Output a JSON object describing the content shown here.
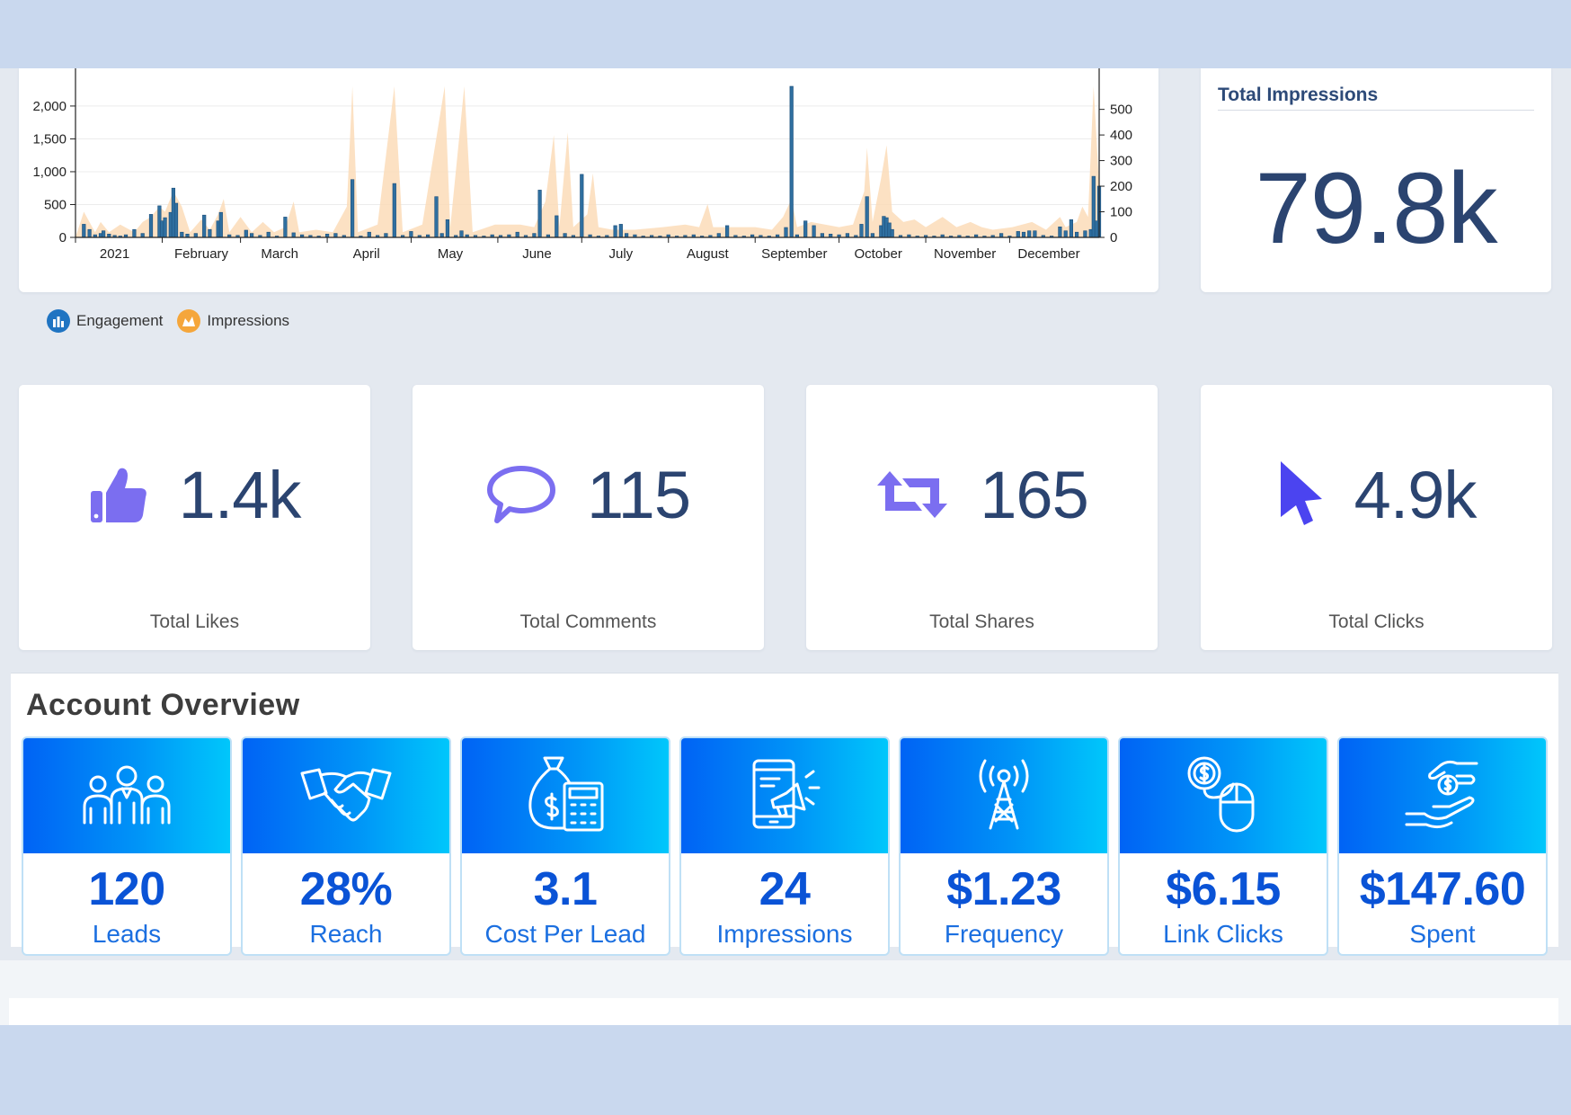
{
  "chart_data": {
    "type": "bar",
    "x_tick_labels": [
      "2021",
      "February",
      "March",
      "April",
      "May",
      "June",
      "July",
      "August",
      "September",
      "October",
      "November",
      "December"
    ],
    "y_left_ticks": [
      "0",
      "500",
      "1,000",
      "1,500",
      "2,000"
    ],
    "y_right_ticks": [
      "0",
      "100",
      "200",
      "300",
      "400",
      "500"
    ],
    "y_left_range": [
      0,
      2300
    ],
    "y_right_range": [
      0,
      590
    ],
    "series": [
      {
        "name": "Engagement",
        "axis": "left",
        "color": "#2f6fa0",
        "values": [
          [
            3,
            200
          ],
          [
            5,
            120
          ],
          [
            7,
            40
          ],
          [
            9,
            60
          ],
          [
            10,
            100
          ],
          [
            12,
            50
          ],
          [
            14,
            30
          ],
          [
            16,
            20
          ],
          [
            18,
            40
          ],
          [
            21,
            120
          ],
          [
            24,
            60
          ],
          [
            27,
            350
          ],
          [
            30,
            480
          ],
          [
            31,
            250
          ],
          [
            32,
            300
          ],
          [
            34,
            380
          ],
          [
            35,
            750
          ],
          [
            36,
            520
          ],
          [
            38,
            80
          ],
          [
            40,
            50
          ],
          [
            43,
            60
          ],
          [
            46,
            340
          ],
          [
            48,
            120
          ],
          [
            51,
            250
          ],
          [
            52,
            380
          ],
          [
            55,
            40
          ],
          [
            58,
            30
          ],
          [
            61,
            110
          ],
          [
            63,
            60
          ],
          [
            66,
            30
          ],
          [
            69,
            80
          ],
          [
            72,
            20
          ],
          [
            75,
            310
          ],
          [
            78,
            70
          ],
          [
            81,
            40
          ],
          [
            84,
            30
          ],
          [
            87,
            20
          ],
          [
            90,
            50
          ],
          [
            93,
            60
          ],
          [
            96,
            30
          ],
          [
            99,
            880
          ],
          [
            102,
            20
          ],
          [
            105,
            80
          ],
          [
            108,
            30
          ],
          [
            111,
            60
          ],
          [
            114,
            820
          ],
          [
            117,
            30
          ],
          [
            120,
            90
          ],
          [
            123,
            30
          ],
          [
            126,
            40
          ],
          [
            129,
            620
          ],
          [
            131,
            60
          ],
          [
            133,
            270
          ],
          [
            136,
            30
          ],
          [
            138,
            100
          ],
          [
            140,
            40
          ],
          [
            143,
            30
          ],
          [
            146,
            20
          ],
          [
            149,
            40
          ],
          [
            152,
            30
          ],
          [
            155,
            40
          ],
          [
            158,
            80
          ],
          [
            161,
            30
          ],
          [
            164,
            60
          ],
          [
            166,
            720
          ],
          [
            169,
            40
          ],
          [
            172,
            330
          ],
          [
            175,
            60
          ],
          [
            178,
            30
          ],
          [
            181,
            960
          ],
          [
            184,
            40
          ],
          [
            187,
            20
          ],
          [
            190,
            30
          ],
          [
            193,
            180
          ],
          [
            195,
            200
          ],
          [
            197,
            60
          ],
          [
            200,
            40
          ],
          [
            203,
            20
          ],
          [
            206,
            30
          ],
          [
            209,
            20
          ],
          [
            212,
            40
          ],
          [
            215,
            20
          ],
          [
            218,
            30
          ],
          [
            221,
            40
          ],
          [
            224,
            20
          ],
          [
            227,
            30
          ],
          [
            230,
            60
          ],
          [
            233,
            180
          ],
          [
            236,
            30
          ],
          [
            239,
            20
          ],
          [
            242,
            40
          ],
          [
            245,
            30
          ],
          [
            248,
            20
          ],
          [
            251,
            40
          ],
          [
            254,
            150
          ],
          [
            256,
            2300
          ],
          [
            258,
            40
          ],
          [
            261,
            250
          ],
          [
            264,
            180
          ],
          [
            267,
            60
          ],
          [
            270,
            50
          ],
          [
            273,
            40
          ],
          [
            276,
            60
          ],
          [
            279,
            30
          ],
          [
            281,
            200
          ],
          [
            283,
            620
          ],
          [
            285,
            60
          ],
          [
            288,
            180
          ],
          [
            289,
            320
          ],
          [
            290,
            300
          ],
          [
            291,
            220
          ],
          [
            292,
            120
          ],
          [
            295,
            30
          ],
          [
            298,
            40
          ],
          [
            301,
            20
          ],
          [
            304,
            30
          ],
          [
            307,
            20
          ],
          [
            310,
            40
          ],
          [
            313,
            20
          ],
          [
            316,
            30
          ],
          [
            319,
            20
          ],
          [
            322,
            40
          ],
          [
            325,
            20
          ],
          [
            328,
            30
          ],
          [
            331,
            60
          ],
          [
            334,
            20
          ],
          [
            337,
            90
          ],
          [
            339,
            80
          ],
          [
            341,
            100
          ],
          [
            343,
            100
          ],
          [
            346,
            30
          ],
          [
            349,
            20
          ],
          [
            352,
            160
          ],
          [
            354,
            100
          ],
          [
            356,
            270
          ],
          [
            358,
            80
          ],
          [
            361,
            100
          ],
          [
            363,
            120
          ],
          [
            364,
            930
          ],
          [
            365,
            250
          ],
          [
            366,
            780
          ]
        ]
      },
      {
        "name": "Impressions",
        "axis": "right",
        "color": "#fcdcb8",
        "values": [
          [
            3,
            100
          ],
          [
            7,
            20
          ],
          [
            9,
            60
          ],
          [
            12,
            20
          ],
          [
            16,
            50
          ],
          [
            21,
            20
          ],
          [
            24,
            60
          ],
          [
            27,
            80
          ],
          [
            30,
            120
          ],
          [
            32,
            100
          ],
          [
            35,
            180
          ],
          [
            38,
            120
          ],
          [
            41,
            20
          ],
          [
            45,
            70
          ],
          [
            48,
            30
          ],
          [
            51,
            90
          ],
          [
            53,
            150
          ],
          [
            55,
            20
          ],
          [
            59,
            80
          ],
          [
            63,
            20
          ],
          [
            67,
            60
          ],
          [
            71,
            20
          ],
          [
            75,
            40
          ],
          [
            78,
            140
          ],
          [
            80,
            20
          ],
          [
            86,
            30
          ],
          [
            92,
            20
          ],
          [
            97,
            120
          ],
          [
            99,
            590
          ],
          [
            101,
            20
          ],
          [
            108,
            50
          ],
          [
            114,
            590
          ],
          [
            117,
            20
          ],
          [
            124,
            50
          ],
          [
            132,
            590
          ],
          [
            134,
            40
          ],
          [
            139,
            590
          ],
          [
            142,
            20
          ],
          [
            150,
            50
          ],
          [
            159,
            50
          ],
          [
            164,
            40
          ],
          [
            168,
            140
          ],
          [
            171,
            400
          ],
          [
            173,
            40
          ],
          [
            176,
            410
          ],
          [
            178,
            40
          ],
          [
            183,
            90
          ],
          [
            185,
            250
          ],
          [
            187,
            40
          ],
          [
            192,
            30
          ],
          [
            200,
            30
          ],
          [
            210,
            40
          ],
          [
            218,
            50
          ],
          [
            223,
            40
          ],
          [
            226,
            130
          ],
          [
            228,
            40
          ],
          [
            236,
            40
          ],
          [
            243,
            40
          ],
          [
            249,
            30
          ],
          [
            253,
            80
          ],
          [
            256,
            150
          ],
          [
            258,
            40
          ],
          [
            263,
            60
          ],
          [
            268,
            50
          ],
          [
            273,
            40
          ],
          [
            278,
            50
          ],
          [
            282,
            180
          ],
          [
            283,
            350
          ],
          [
            285,
            60
          ],
          [
            288,
            230
          ],
          [
            290,
            360
          ],
          [
            292,
            100
          ],
          [
            296,
            60
          ],
          [
            300,
            70
          ],
          [
            304,
            40
          ],
          [
            310,
            80
          ],
          [
            315,
            40
          ],
          [
            320,
            60
          ],
          [
            324,
            40
          ],
          [
            328,
            30
          ],
          [
            335,
            40
          ],
          [
            342,
            60
          ],
          [
            347,
            30
          ],
          [
            352,
            80
          ],
          [
            354,
            40
          ],
          [
            358,
            60
          ],
          [
            360,
            120
          ],
          [
            362,
            80
          ],
          [
            364,
            590
          ],
          [
            366,
            200
          ]
        ]
      }
    ]
  },
  "legend": {
    "engagement": "Engagement",
    "impressions": "Impressions"
  },
  "total_impressions": {
    "title": "Total Impressions",
    "value": "79.8k"
  },
  "stats": [
    {
      "value": "1.4k",
      "label": "Total Likes",
      "icon": "thumbs-up-icon"
    },
    {
      "value": "115",
      "label": "Total Comments",
      "icon": "speech-bubble-icon"
    },
    {
      "value": "165",
      "label": "Total Shares",
      "icon": "retweet-icon"
    },
    {
      "value": "4.9k",
      "label": "Total Clicks",
      "icon": "cursor-icon"
    }
  ],
  "account_overview": {
    "title": "Account Overview",
    "tiles": [
      {
        "value": "120",
        "label": "Leads",
        "icon": "people-icon"
      },
      {
        "value": "28%",
        "label": "Reach",
        "icon": "handshake-icon"
      },
      {
        "value": "3.1",
        "label": "Cost Per Lead",
        "icon": "money-bag-calculator-icon"
      },
      {
        "value": "24",
        "label": "Impressions",
        "icon": "phone-megaphone-icon"
      },
      {
        "value": "$1.23",
        "label": "Frequency",
        "icon": "antenna-tower-icon"
      },
      {
        "value": "$6.15",
        "label": "Link Clicks",
        "icon": "coin-mouse-icon"
      },
      {
        "value": "$147.60",
        "label": "Spent",
        "icon": "hand-money-icon"
      }
    ]
  },
  "colors": {
    "navy": "#2b4470",
    "accent_blue": "#0a53d6",
    "engagement": "#2f6fa0",
    "impressions": "#fcdcb8",
    "icon_purple": "#7b6ef0"
  }
}
